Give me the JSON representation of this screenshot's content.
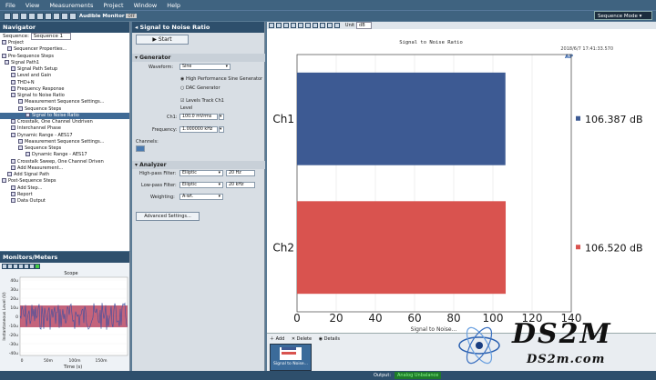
{
  "menu": [
    "File",
    "View",
    "Measurements",
    "Project",
    "Window",
    "Help"
  ],
  "toolbar": {
    "monitor_label": "Audible Monitor",
    "monitor_state": "OFF",
    "mode_label": "Sequence Mode"
  },
  "navigator": {
    "title": "Navigator",
    "sequence_label": "Sequence:",
    "sequence_value": "Sequence 1",
    "items": [
      "Project",
      "Sequencer Properties...",
      "Pre-Sequence Steps",
      "Signal Path1",
      "Signal Path Setup",
      "Level and Gain",
      "THD+N",
      "Frequency Response",
      "Signal to Noise Ratio",
      "Measurement Sequence Settings...",
      "Sequence Steps",
      "Signal to Noise Ratio",
      "Crosstalk, One Channel Undriven",
      "Interchannel Phase",
      "Dynamic Range - AES17",
      "Measurement Sequence Settings...",
      "Sequence Steps",
      "Dynamic Range - AES17",
      "Crosstalk Sweep, One Channel Driven",
      "Add Measurement...",
      "Add Signal Path",
      "Post-Sequence Steps",
      "Add Step...",
      "Report",
      "Data Output"
    ]
  },
  "monitors": {
    "title": "Monitors/Meters",
    "scope_title": "Scope",
    "ylabel": "Instantaneous Level (V)",
    "xlabel": "Time (s)",
    "yticks": [
      "40u",
      "30u",
      "20u",
      "10u",
      "0",
      "-10u",
      "-20u",
      "-30u",
      "-40u"
    ],
    "xticks": [
      "0",
      "50m",
      "100m",
      "150m"
    ]
  },
  "settings": {
    "title": "Signal to Noise Ratio",
    "start": "Start",
    "generator": "Generator",
    "waveform_label": "Waveform:",
    "waveform": "Sine",
    "hp_gen": "High Performance Sine Generator",
    "dac_gen": "DAC Generator",
    "levels_track": "Levels Track Ch1",
    "level_header": "Level",
    "ch1_label": "Ch1:",
    "ch1_value": "100.0 mVrms",
    "freq_label": "Frequency:",
    "freq_value": "1.000000 kHz",
    "channels_label": "Channels:",
    "analyzer": "Analyzer",
    "hpf_label": "High-pass Filter:",
    "hpf_type": "Elliptic",
    "hpf_value": "20 Hz",
    "lpf_label": "Low-pass Filter:",
    "lpf_type": "Elliptic",
    "lpf_value": "20 kHz",
    "weight_label": "Weighting:",
    "weight_value": "A-wt.",
    "advanced": "Advanced Settings..."
  },
  "graph": {
    "unit_label": "Unit",
    "unit_value": "dB",
    "title": "Signal to Noise Ratio",
    "timestamp": "2018/6/7 17:41:33.570",
    "x_axis_label": "Signal to Noise..."
  },
  "chart_data": {
    "type": "bar",
    "orientation": "horizontal",
    "categories": [
      "Ch1",
      "Ch2"
    ],
    "values": [
      106.387,
      106.52
    ],
    "value_labels": [
      "106.387 dB",
      "106.520 dB"
    ],
    "colors": [
      "#3d5a93",
      "#d9534f"
    ],
    "xlim": [
      0,
      140
    ],
    "xticks": [
      0,
      20,
      40,
      60,
      80,
      100,
      120,
      140
    ],
    "title": "Signal to Noise Ratio",
    "xlabel": "Signal to Noise..."
  },
  "bottom": {
    "add": "Add",
    "delete": "Delete",
    "details": "Details",
    "thumb": "Signal to Noise..."
  },
  "status": {
    "output_label": "Output:",
    "output_value": "Analog Unbalance"
  },
  "watermark": {
    "logo": "DS2M",
    "url": "DS2m.com"
  }
}
